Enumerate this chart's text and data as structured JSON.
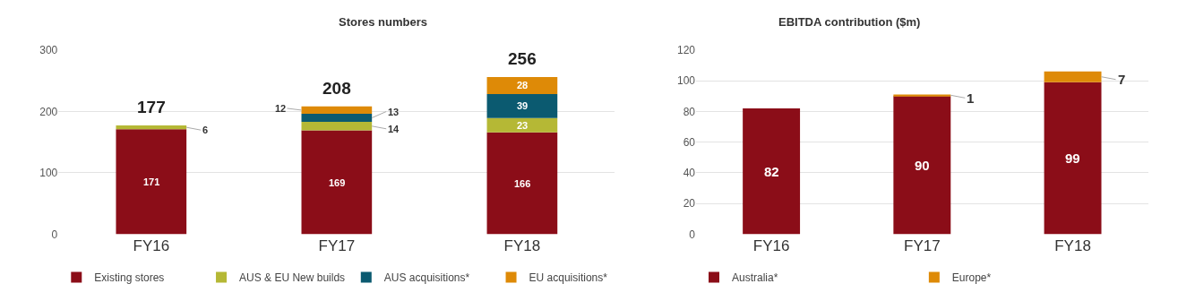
{
  "chart_data": [
    {
      "type": "bar",
      "title": "Stores numbers",
      "categories": [
        "FY16",
        "FY17",
        "FY18"
      ],
      "stacked": true,
      "ylim": [
        0,
        300
      ],
      "yticks": [
        0,
        100,
        200,
        300
      ],
      "grid": "y",
      "legend": "bottom",
      "data_labels": true,
      "totals": [
        "177",
        "208",
        "256"
      ],
      "series": [
        {
          "name": "Existing stores",
          "color": "#8b0d18",
          "values": [
            171,
            169,
            166
          ]
        },
        {
          "name": "AUS & EU New builds",
          "color": "#b5b835",
          "values": [
            6,
            14,
            23
          ]
        },
        {
          "name": "AUS acquisitions*",
          "color": "#0b5a70",
          "values": [
            null,
            13,
            39
          ]
        },
        {
          "name": "EU acquisitions*",
          "color": "#de8a07",
          "values": [
            null,
            12,
            28
          ]
        }
      ]
    },
    {
      "type": "bar",
      "title": "EBITDA contribution ($m)",
      "categories": [
        "FY16",
        "FY17",
        "FY18"
      ],
      "stacked": true,
      "ylim": [
        0,
        120
      ],
      "yticks": [
        0,
        20,
        40,
        60,
        80,
        100,
        120
      ],
      "grid": "y",
      "legend": "bottom",
      "data_labels": true,
      "series": [
        {
          "name": "Australia*",
          "color": "#8b0d18",
          "values": [
            82,
            90,
            99
          ]
        },
        {
          "name": "Europe*",
          "color": "#de8a07",
          "values": [
            null,
            1,
            7
          ]
        }
      ]
    }
  ]
}
